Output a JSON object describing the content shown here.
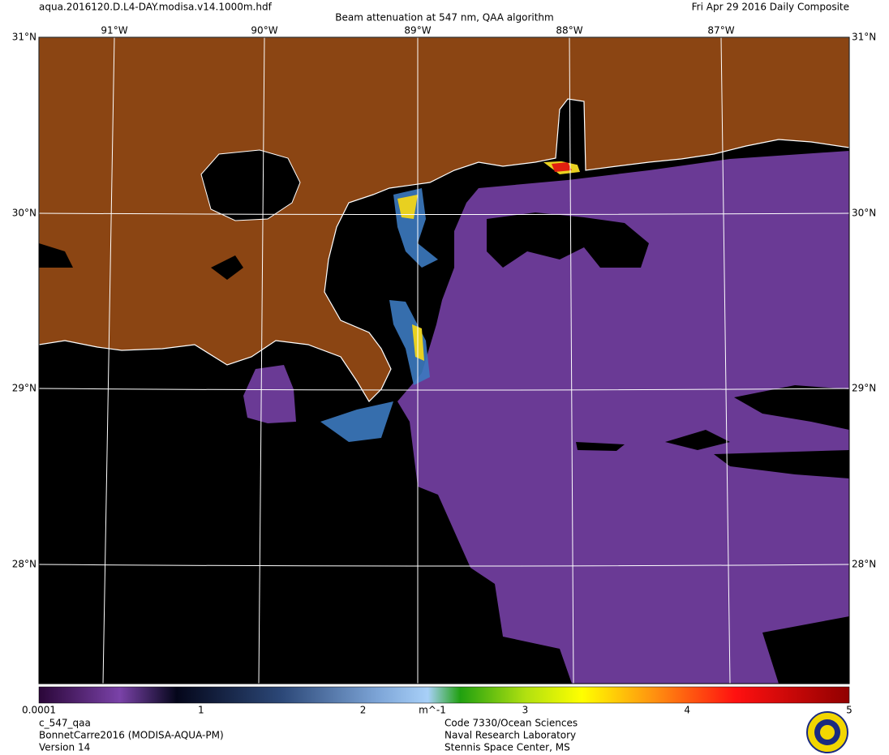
{
  "header": {
    "filename": "aqua.2016120.D.L4-DAY.modisa.v14.1000m.hdf",
    "title": "Beam attenuation at 547 nm, QAA algorithm",
    "date": "Fri Apr 29 2016 Daily Composite"
  },
  "map": {
    "lat_labels": [
      "31°N",
      "30°N",
      "29°N",
      "28°N"
    ],
    "lon_labels": [
      "91°W",
      "90°W",
      "89°W",
      "88°W",
      "87°W"
    ]
  },
  "colorbar": {
    "range": [
      0.0001,
      5
    ],
    "ticks": [
      0.0001,
      1,
      2,
      3,
      4,
      5
    ],
    "unit": "m^-1"
  },
  "footer": {
    "left": [
      "c_547_qaa",
      "BonnetCarre2016 (MODISA-AQUA-PM)",
      "Version 14"
    ],
    "center": [
      "Code 7330/Ocean Sciences",
      "Naval Research Laboratory",
      "Stennis Space Center, MS"
    ]
  }
}
